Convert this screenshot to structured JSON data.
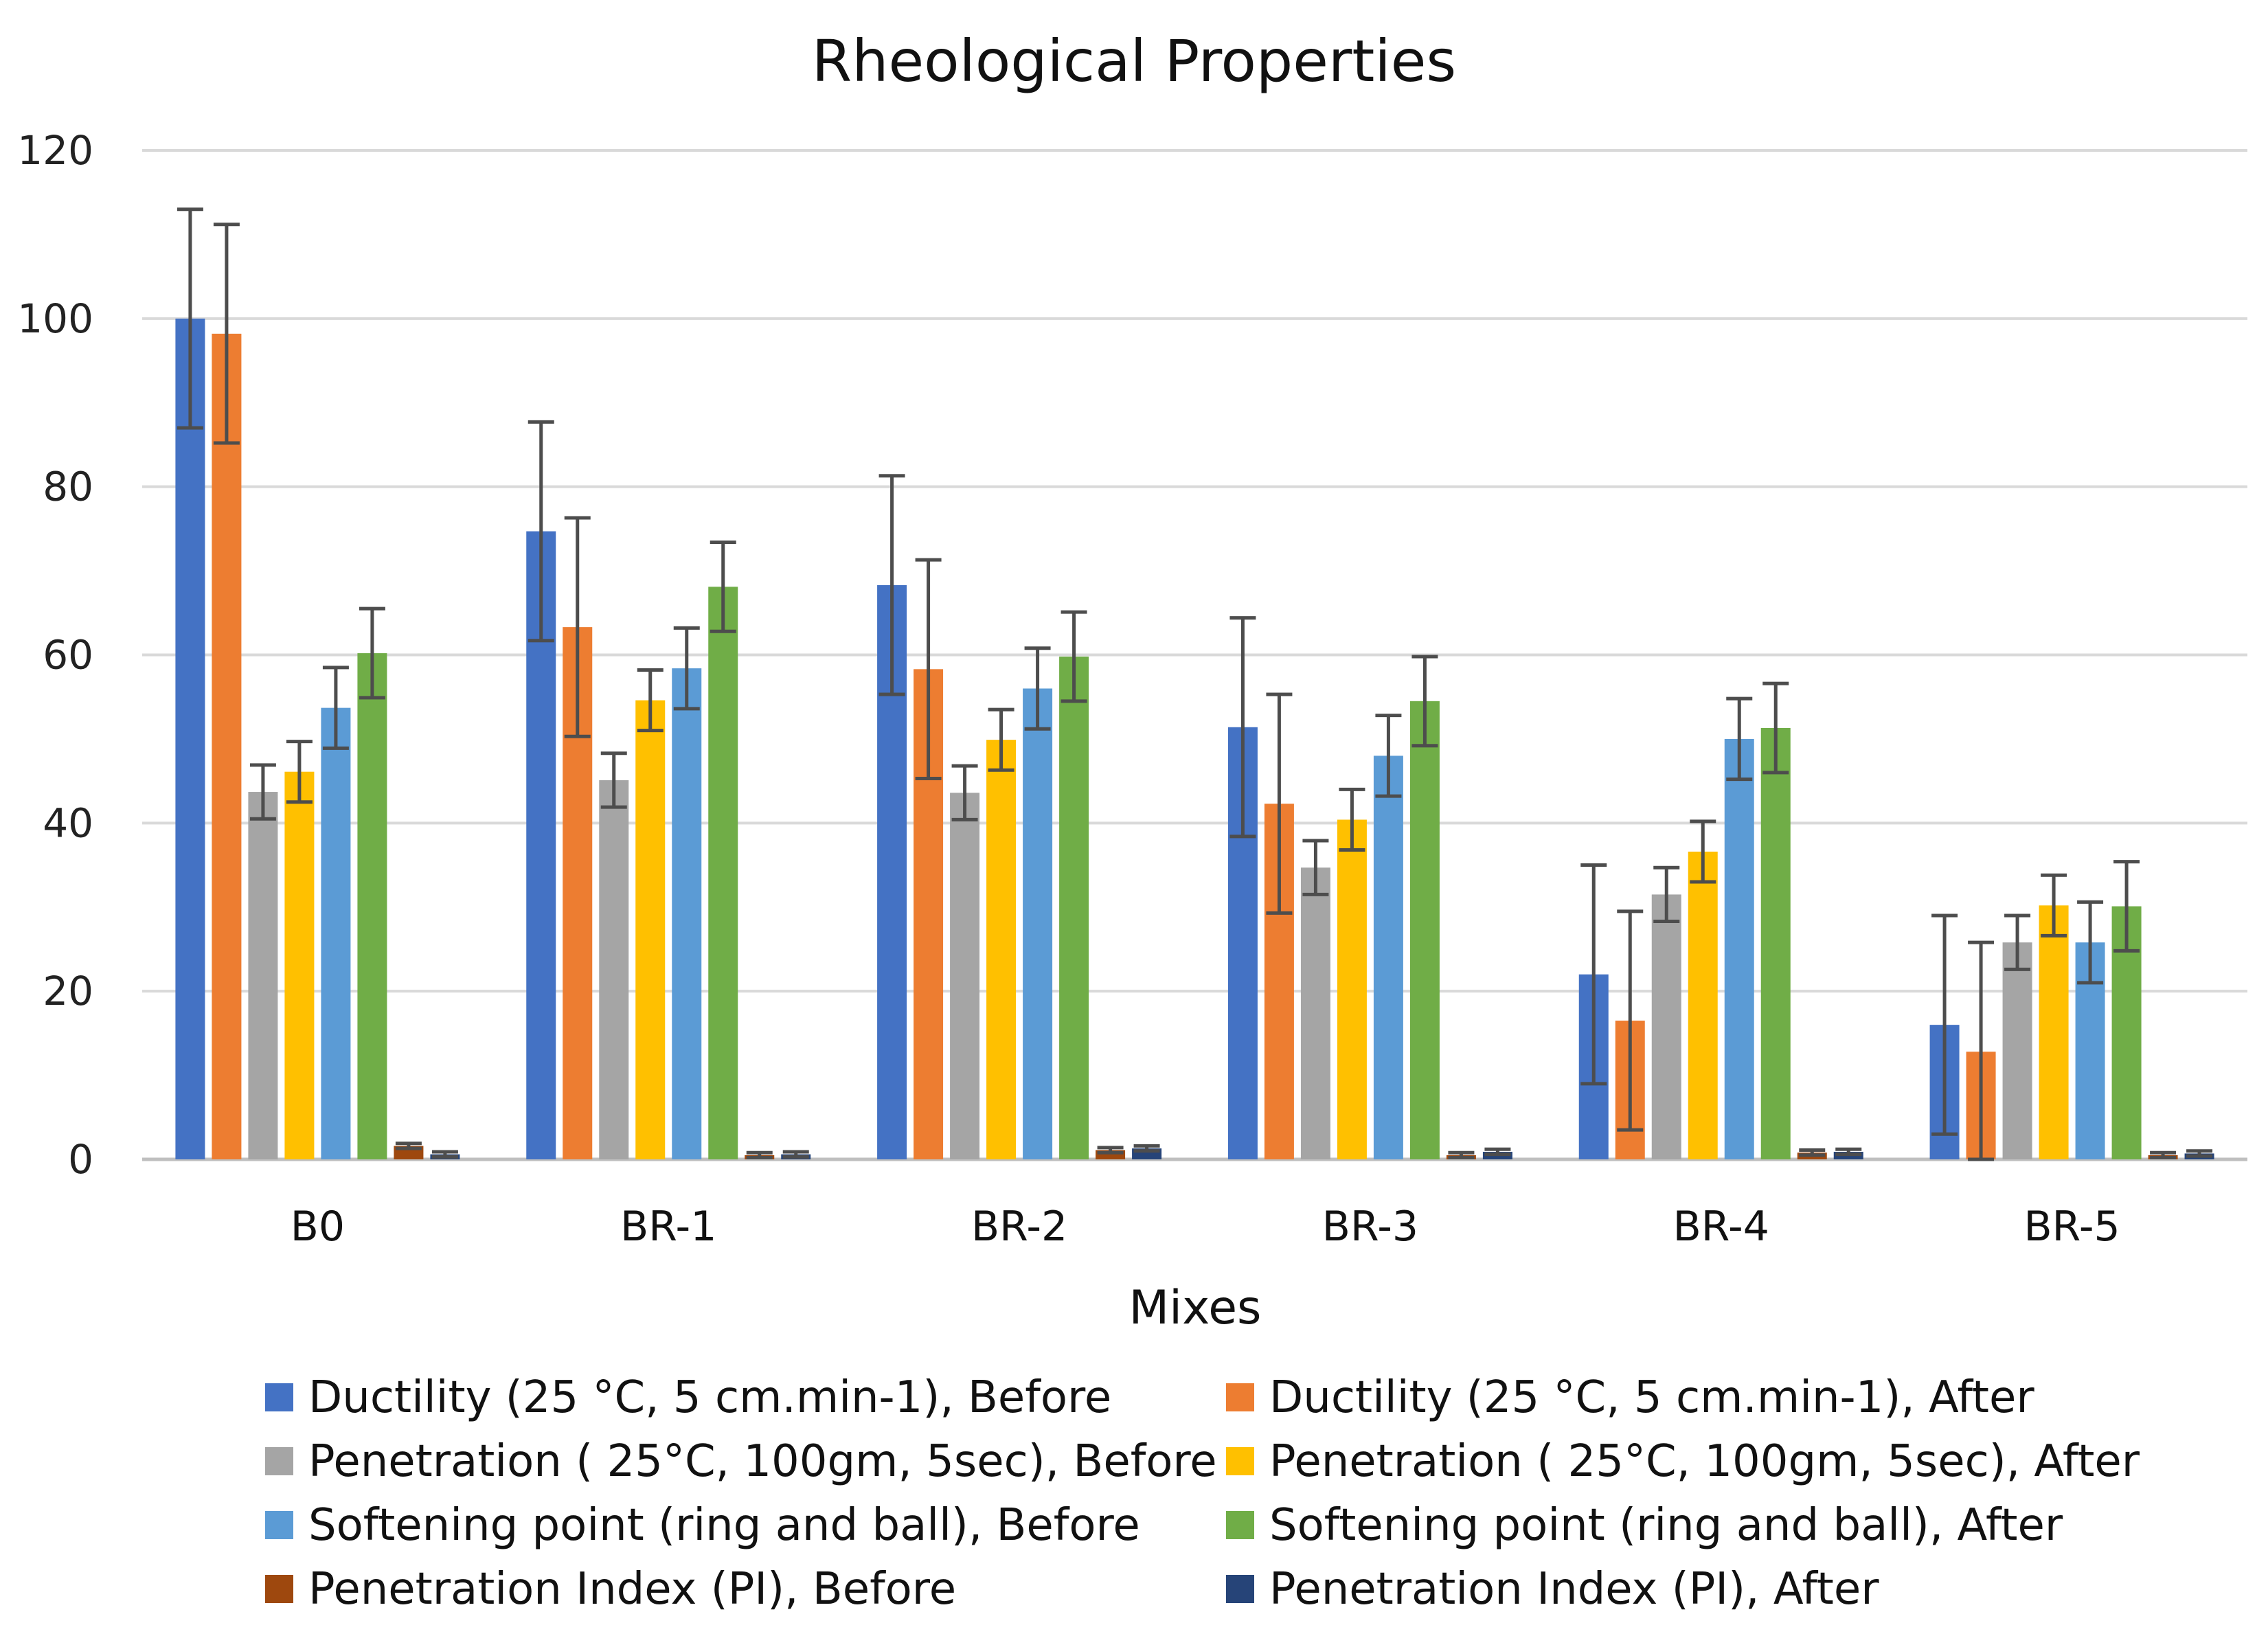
{
  "chart_data": {
    "type": "bar",
    "title": "Rheological Properties",
    "xlabel": "Mixes",
    "ylabel": "",
    "ylim": [
      0,
      120
    ],
    "yticks": [
      0,
      20,
      40,
      60,
      80,
      100,
      120
    ],
    "grid": true,
    "legend_position": "bottom",
    "categories": [
      "B0",
      "BR-1",
      "BR-2",
      "BR-3",
      "BR-4",
      "BR-5"
    ],
    "series": [
      {
        "name": "Ductility (25 °C, 5 cm.min-1), Before",
        "color": "#4472C4",
        "values": [
          100,
          74.7,
          68.3,
          51.4,
          22,
          16
        ],
        "error": [
          13,
          13,
          13,
          13,
          13,
          13
        ]
      },
      {
        "name": "Ductility (25 °C, 5 cm.min-1), After",
        "color": "#ED7D31",
        "values": [
          98.2,
          63.3,
          58.3,
          42.3,
          16.5,
          12.8
        ],
        "error": [
          13,
          13,
          13,
          13,
          13,
          13
        ]
      },
      {
        "name": "Penetration ( 25°C, 100gm, 5sec), Before",
        "color": "#A5A5A5",
        "values": [
          43.7,
          45.1,
          43.6,
          34.7,
          31.5,
          25.8
        ],
        "error": [
          3.2,
          3.2,
          3.2,
          3.2,
          3.2,
          3.2
        ]
      },
      {
        "name": "Penetration ( 25°C, 100gm, 5sec), After",
        "color": "#FFC000",
        "values": [
          46.1,
          54.6,
          49.9,
          40.4,
          36.6,
          30.2
        ],
        "error": [
          3.6,
          3.6,
          3.6,
          3.6,
          3.6,
          3.6
        ]
      },
      {
        "name": "Softening point (ring and ball), Before",
        "color": "#5B9BD5",
        "values": [
          53.7,
          58.4,
          56,
          48,
          50,
          25.8
        ],
        "error": [
          4.8,
          4.8,
          4.8,
          4.8,
          4.8,
          4.8
        ]
      },
      {
        "name": "Softening point (ring and ball), After",
        "color": "#70AD47",
        "values": [
          60.2,
          68.1,
          59.8,
          54.5,
          51.3,
          30.1
        ],
        "error": [
          5.3,
          5.3,
          5.3,
          5.3,
          5.3,
          5.3
        ]
      },
      {
        "name": "Penetration Index  (PI), Before",
        "color": "#9E480E",
        "values": [
          1.6,
          0.5,
          1.1,
          0.5,
          0.8,
          0.5
        ],
        "error": [
          0.3,
          0.3,
          0.3,
          0.3,
          0.3,
          0.3
        ]
      },
      {
        "name": "Penetration Index (PI), After",
        "color": "#264478",
        "values": [
          0.6,
          0.6,
          1.3,
          0.9,
          0.9,
          0.7
        ],
        "error": [
          0.3,
          0.3,
          0.3,
          0.3,
          0.3,
          0.3
        ]
      }
    ]
  }
}
